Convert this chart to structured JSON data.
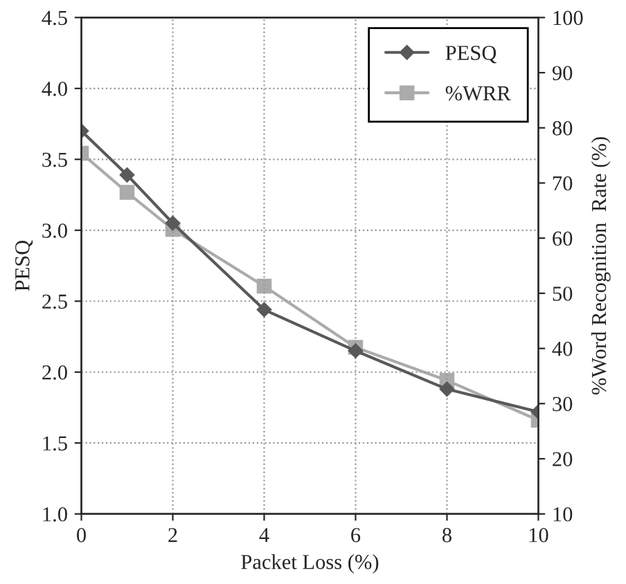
{
  "chart_data": {
    "type": "line",
    "xlabel": "Packet Loss (%)",
    "ylabel": "PESQ",
    "y2label": "%Word Recognition  Rate (%)",
    "x": [
      0,
      1,
      2,
      4,
      6,
      8,
      10
    ],
    "series": [
      {
        "name": "PESQ",
        "color": "#595959",
        "marker": "diamond",
        "values": [
          3.7,
          3.39,
          3.05,
          2.44,
          2.15,
          1.88,
          1.72
        ]
      },
      {
        "name": "%WRR",
        "color": "#ababab",
        "marker": "square",
        "axis": "y2",
        "values": [
          75.4,
          68.3,
          61.6,
          51.3,
          40.2,
          34.2,
          27.0
        ]
      }
    ],
    "xlim": [
      0,
      10
    ],
    "xticks": [
      0,
      2,
      4,
      6,
      8,
      10
    ],
    "ylim": [
      1.0,
      4.5
    ],
    "yticks": [
      {
        "value": 1.0,
        "label": "1.0"
      },
      1.5,
      {
        "value": 2.0,
        "label": "2.0"
      },
      2.5,
      {
        "value": 3.0,
        "label": "3.0"
      },
      3.5,
      {
        "value": 4.0,
        "label": "4.0"
      },
      4.5
    ],
    "y2lim": [
      10,
      100
    ],
    "y2ticks": [
      10,
      20,
      30,
      40,
      50,
      60,
      70,
      80,
      90,
      100
    ],
    "grid": true,
    "legend": "top right",
    "line_style": "solid"
  }
}
